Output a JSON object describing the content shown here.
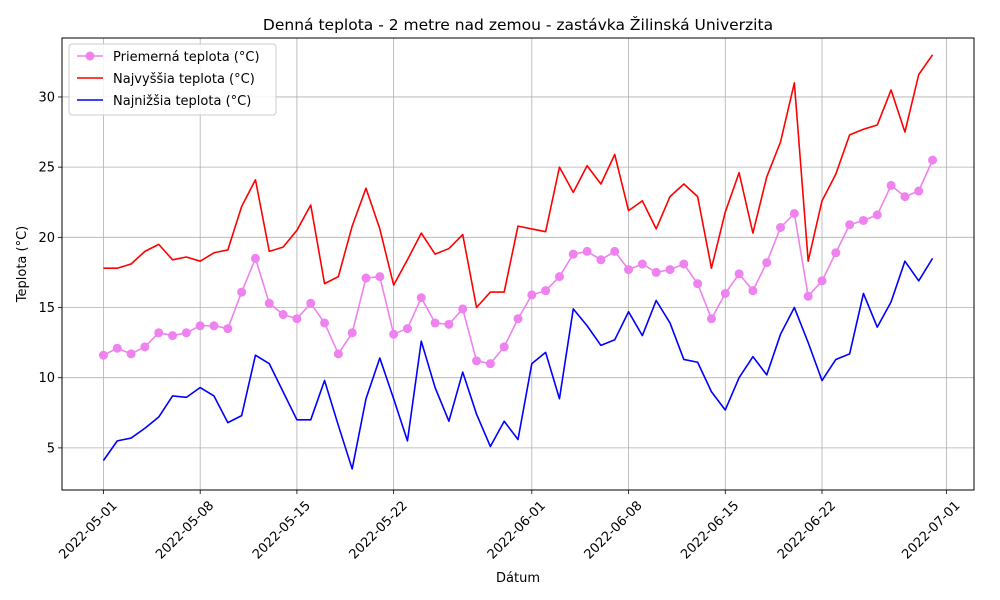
{
  "chart_data": {
    "type": "line",
    "title": "Denná teplota - 2 metre nad zemou - zastávka Žilinská Univerzita",
    "xlabel": "Dátum",
    "ylabel": "Teplota (°C)",
    "x_start": "2022-05-01",
    "xlim": [
      "2022-04-28",
      "2022-07-03"
    ],
    "ylim": [
      2.0,
      34.2
    ],
    "x_ticks": [
      {
        "date": "2022-05-01",
        "label": "2022-05-01"
      },
      {
        "date": "2022-05-08",
        "label": "2022-05-08"
      },
      {
        "date": "2022-05-15",
        "label": "2022-05-15"
      },
      {
        "date": "2022-05-22",
        "label": "2022-05-22"
      },
      {
        "date": "2022-06-01",
        "label": "2022-06-01"
      },
      {
        "date": "2022-06-08",
        "label": "2022-06-08"
      },
      {
        "date": "2022-06-15",
        "label": "2022-06-15"
      },
      {
        "date": "2022-06-22",
        "label": "2022-06-22"
      },
      {
        "date": "2022-07-01",
        "label": "2022-07-01"
      }
    ],
    "y_ticks": [
      {
        "value": 5,
        "label": "5"
      },
      {
        "value": 10,
        "label": "10"
      },
      {
        "value": 15,
        "label": "15"
      },
      {
        "value": 20,
        "label": "20"
      },
      {
        "value": 25,
        "label": "25"
      },
      {
        "value": 30,
        "label": "30"
      }
    ],
    "grid": true,
    "legend_position": "top-left",
    "series": [
      {
        "name": "Priemerná teplota (°C)",
        "color": "#ee82ee",
        "marker": "circle",
        "values": [
          11.6,
          12.1,
          11.7,
          12.2,
          13.2,
          13.0,
          13.2,
          13.7,
          13.7,
          13.5,
          16.1,
          18.5,
          15.3,
          14.5,
          14.2,
          15.3,
          13.9,
          11.7,
          13.2,
          17.1,
          17.2,
          13.1,
          13.5,
          15.7,
          13.9,
          13.8,
          14.9,
          11.2,
          11.0,
          12.2,
          14.2,
          15.9,
          16.2,
          17.2,
          18.8,
          19.0,
          18.4,
          19.0,
          17.7,
          18.1,
          17.5,
          17.7,
          18.1,
          16.7,
          14.2,
          16.0,
          17.4,
          16.2,
          18.2,
          20.7,
          21.7,
          15.8,
          16.9,
          18.9,
          20.9,
          21.2,
          21.6,
          23.7,
          22.9,
          23.3,
          25.5
        ]
      },
      {
        "name": "Najvyššia teplota (°C)",
        "color": "#ff0000",
        "marker": "none",
        "values": [
          17.8,
          17.8,
          18.1,
          19.0,
          19.5,
          18.4,
          18.6,
          18.3,
          18.9,
          19.1,
          22.2,
          24.1,
          19.0,
          19.3,
          20.5,
          22.3,
          16.7,
          17.2,
          20.8,
          23.5,
          20.6,
          16.6,
          18.4,
          20.3,
          18.8,
          19.2,
          20.2,
          15.0,
          16.1,
          16.1,
          20.8,
          20.6,
          20.4,
          25.0,
          23.2,
          25.1,
          23.8,
          25.9,
          21.9,
          22.6,
          20.6,
          22.9,
          23.8,
          22.9,
          17.8,
          21.8,
          24.6,
          20.3,
          24.3,
          26.8,
          31.0,
          18.3,
          22.6,
          24.5,
          27.3,
          27.7,
          28.0,
          30.5,
          27.5,
          31.6,
          33.0
        ]
      },
      {
        "name": "Najnižšia teplota (°C)",
        "color": "#0000ff",
        "marker": "none",
        "values": [
          4.1,
          5.5,
          5.7,
          6.4,
          7.2,
          8.7,
          8.6,
          9.3,
          8.7,
          6.8,
          7.3,
          11.6,
          11.0,
          9.0,
          7.0,
          7.0,
          9.8,
          6.6,
          3.5,
          8.5,
          11.4,
          8.5,
          5.5,
          12.6,
          9.3,
          6.9,
          10.4,
          7.4,
          5.1,
          6.9,
          5.6,
          11.0,
          11.8,
          8.5,
          14.9,
          13.7,
          12.3,
          12.7,
          14.7,
          13.0,
          15.5,
          13.9,
          11.3,
          11.1,
          9.0,
          7.7,
          10.0,
          11.5,
          10.2,
          13.1,
          15.0,
          12.5,
          9.8,
          11.3,
          11.7,
          16.0,
          13.6,
          15.4,
          18.3,
          16.9,
          18.5
        ]
      }
    ]
  }
}
